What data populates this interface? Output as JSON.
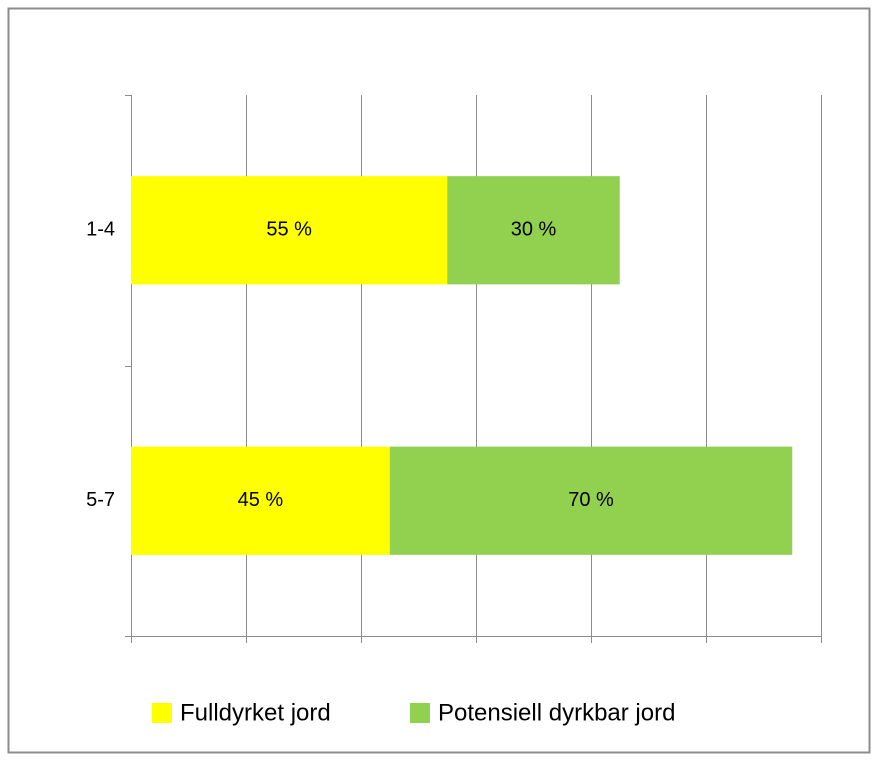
{
  "chart_data": {
    "type": "stacked_bar_horizontal",
    "categories": [
      "1-4",
      "5-7"
    ],
    "series": [
      {
        "name": "Fulldyrket jord",
        "color": "#ffff00",
        "values": [
          55,
          45
        ],
        "value_labels": [
          "55 %",
          "45 %"
        ]
      },
      {
        "name": "Potensiell dyrkbar jord",
        "color": "#92d050",
        "values": [
          30,
          70
        ],
        "value_labels": [
          "30 %",
          "70 %"
        ]
      }
    ],
    "xlim": [
      0,
      120
    ],
    "xticks": [
      0,
      20,
      40,
      60,
      80,
      100,
      120
    ],
    "grid": true,
    "legend": "bottom"
  }
}
